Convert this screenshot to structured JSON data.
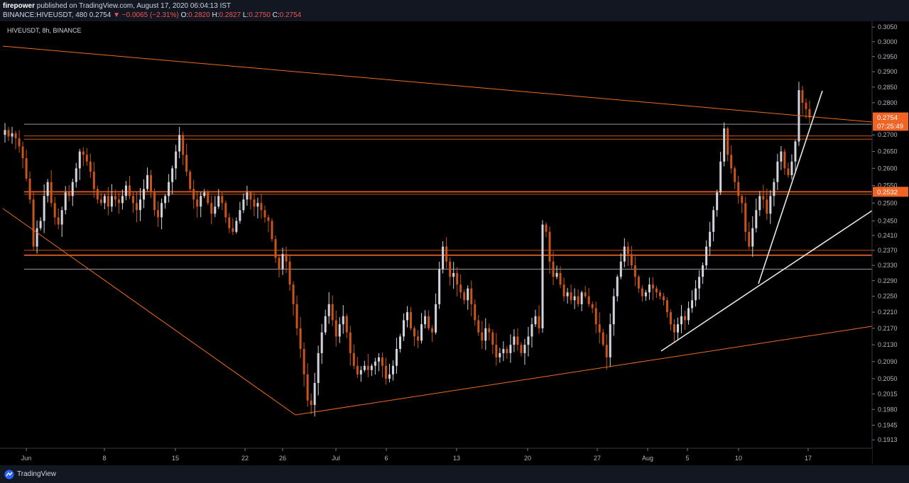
{
  "header": {
    "author": "firepower",
    "published_text": "published on TradingView.com, August 17, 2020 06:04:13 IST",
    "symbol": "BINANCE:HIVEUSDT, 480",
    "last": "0.2754",
    "change": "▼ −0.0065 (−2.31%)",
    "o_label": "O:",
    "o_value": "0.2820",
    "h_label": "H:",
    "h_value": "0.2827",
    "l_label": "L:",
    "l_value": "0.2750",
    "c_label": "C:",
    "c_value": "0.2754"
  },
  "symbol_label": "HIVEUSDT, 8h, BINANCE",
  "footer": {
    "brand": "TradingView"
  },
  "colors": {
    "background": "#000000",
    "up": "#d1d4dc",
    "down": "#c9541c",
    "trendline_orange": "#ef6c20",
    "trendline_white": "#e6e6e6",
    "price_badge": "#f06425"
  },
  "chart_data": {
    "type": "candlestick",
    "timeframe": "8h",
    "ylim": [
      0.1895,
      0.307
    ],
    "y_scale": "log",
    "y_ticks": [
      "0.3050",
      "0.3000",
      "0.2950",
      "0.2900",
      "0.2850",
      "0.2800",
      "0.2700",
      "0.2650",
      "0.2600",
      "0.2550",
      "0.2500",
      "0.2450",
      "0.2410",
      "0.2370",
      "0.2330",
      "0.2290",
      "0.2250",
      "0.2210",
      "0.2170",
      "0.2130",
      "0.2090",
      "0.2050",
      "0.2015",
      "0.1980",
      "0.1945",
      "0.1913"
    ],
    "x_ticks": [
      "Jun",
      "8",
      "15",
      "22",
      "26",
      "Jul",
      "6",
      "13",
      "20",
      "27",
      "Aug",
      "5",
      "10",
      "17"
    ],
    "x_tick_dates": [
      "2020-06-01",
      "2020-06-08",
      "2020-06-15",
      "2020-06-22",
      "2020-06-26",
      "2020-07-01",
      "2020-07-06",
      "2020-07-13",
      "2020-07-20",
      "2020-07-27",
      "2020-08-01",
      "2020-08-05",
      "2020-08-10",
      "2020-08-17"
    ],
    "price_badges": [
      {
        "label": "0.2754",
        "value": 0.2754
      },
      {
        "label": "07:25:49",
        "value": 0.2728
      },
      {
        "label": "0.2532",
        "value": 0.2532
      }
    ],
    "horizontal_levels": [
      {
        "value": 0.2733,
        "color": "#9598a1"
      },
      {
        "value": 0.2697,
        "color": "#c9541c"
      },
      {
        "value": 0.2687,
        "color": "#c9541c"
      },
      {
        "value": 0.2532,
        "color": "#f06425"
      },
      {
        "value": 0.2525,
        "color": "#c9541c"
      },
      {
        "value": 0.237,
        "color": "#c9541c"
      },
      {
        "value": 0.2357,
        "color": "#f06425"
      },
      {
        "value": 0.232,
        "color": "#9598a1"
      }
    ],
    "candle_closes": [
      0.2715,
      0.2695,
      0.2705,
      0.269,
      0.2665,
      0.263,
      0.257,
      0.251,
      0.238,
      0.243,
      0.245,
      0.252,
      0.256,
      0.25,
      0.246,
      0.244,
      0.248,
      0.253,
      0.252,
      0.256,
      0.26,
      0.265,
      0.264,
      0.262,
      0.259,
      0.254,
      0.251,
      0.25,
      0.252,
      0.249,
      0.252,
      0.251,
      0.25,
      0.252,
      0.255,
      0.252,
      0.25,
      0.248,
      0.251,
      0.254,
      0.258,
      0.253,
      0.248,
      0.246,
      0.25,
      0.252,
      0.256,
      0.26,
      0.265,
      0.27,
      0.264,
      0.259,
      0.254,
      0.251,
      0.249,
      0.252,
      0.253,
      0.25,
      0.247,
      0.249,
      0.252,
      0.25,
      0.246,
      0.243,
      0.242,
      0.245,
      0.248,
      0.251,
      0.253,
      0.251,
      0.249,
      0.25,
      0.248,
      0.246,
      0.245,
      0.24,
      0.235,
      0.232,
      0.236,
      0.234,
      0.228,
      0.223,
      0.217,
      0.212,
      0.206,
      0.2,
      0.199,
      0.204,
      0.211,
      0.216,
      0.22,
      0.223,
      0.219,
      0.215,
      0.218,
      0.22,
      0.216,
      0.211,
      0.208,
      0.206,
      0.207,
      0.208,
      0.207,
      0.208,
      0.209,
      0.21,
      0.208,
      0.205,
      0.206,
      0.208,
      0.212,
      0.215,
      0.219,
      0.221,
      0.217,
      0.215,
      0.214,
      0.218,
      0.22,
      0.217,
      0.216,
      0.223,
      0.232,
      0.238,
      0.234,
      0.23,
      0.231,
      0.228,
      0.226,
      0.224,
      0.227,
      0.223,
      0.219,
      0.216,
      0.214,
      0.217,
      0.216,
      0.213,
      0.21,
      0.211,
      0.212,
      0.211,
      0.213,
      0.215,
      0.213,
      0.211,
      0.213,
      0.215,
      0.218,
      0.22,
      0.217,
      0.244,
      0.242,
      0.234,
      0.23,
      0.231,
      0.228,
      0.225,
      0.226,
      0.224,
      0.225,
      0.223,
      0.226,
      0.225,
      0.223,
      0.222,
      0.218,
      0.216,
      0.213,
      0.21,
      0.218,
      0.225,
      0.23,
      0.234,
      0.238,
      0.236,
      0.233,
      0.23,
      0.227,
      0.225,
      0.226,
      0.228,
      0.227,
      0.226,
      0.225,
      0.224,
      0.221,
      0.218,
      0.216,
      0.218,
      0.22,
      0.219,
      0.222,
      0.224,
      0.227,
      0.23,
      0.233,
      0.238,
      0.242,
      0.248,
      0.253,
      0.262,
      0.272,
      0.264,
      0.26,
      0.256,
      0.252,
      0.25,
      0.242,
      0.238,
      0.243,
      0.248,
      0.252,
      0.251,
      0.247,
      0.252,
      0.256,
      0.262,
      0.265,
      0.26,
      0.258,
      0.262,
      0.268,
      0.284,
      0.28,
      0.278,
      0.2754
    ]
  }
}
